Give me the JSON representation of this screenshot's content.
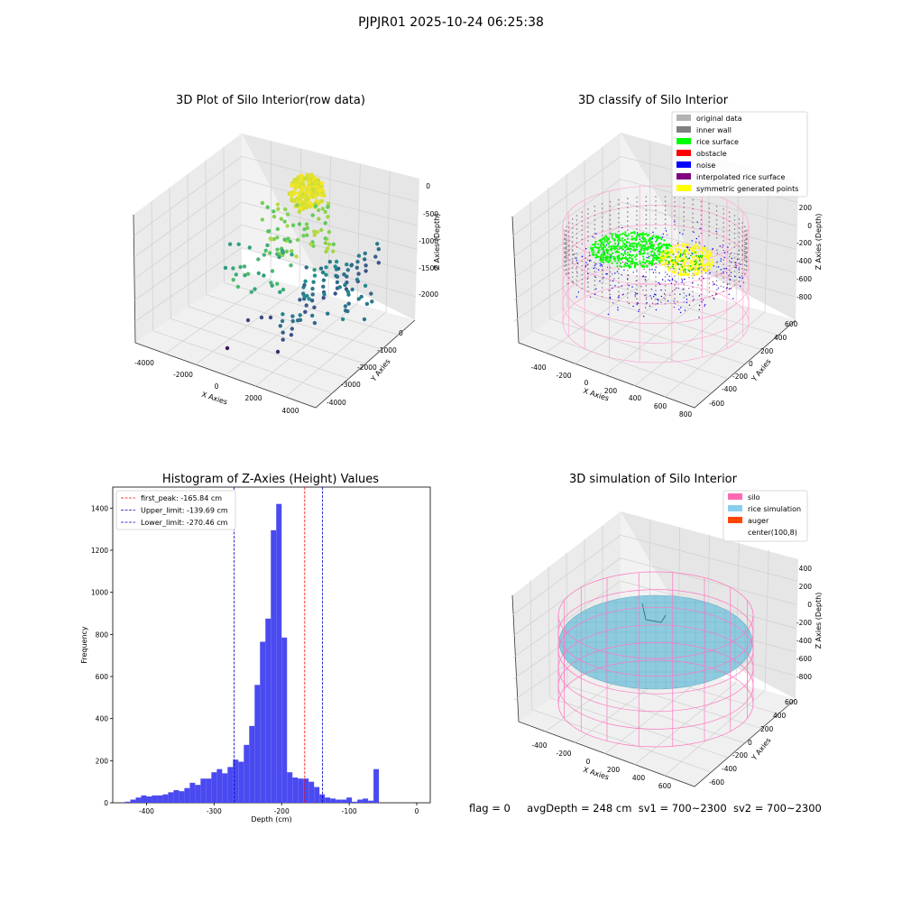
{
  "header": {
    "title": "PJPJR01 2025-10-24 06:25:38"
  },
  "footer": {
    "flag": "flag = 0",
    "avg": "avgDepth = 248 cm",
    "sv1": "sv1 = 700~2300",
    "sv2": "sv2 = 700~2300"
  },
  "chart_data": [
    {
      "type": "scatter",
      "title": "3D Plot of Silo Interior(row data)",
      "xlabel": "X Axies",
      "ylabel": "Y Axies",
      "zlabel": "Z Axies (Depth)",
      "x_ticks": [
        "-4000",
        "-2000",
        "0",
        "2000",
        "4000"
      ],
      "y_ticks": [
        "0",
        "-1000",
        "-2000",
        "-3000",
        "-4000"
      ],
      "z_ticks": [
        "0",
        "-500",
        "-1000",
        "-1500",
        "-2000"
      ],
      "colormap": "viridis",
      "grid": true
    },
    {
      "type": "scatter",
      "title": "3D classify of Silo Interior",
      "xlabel": "X Axies",
      "ylabel": "Y Axies",
      "zlabel": "Z Axies (Depth)",
      "x_ticks": [
        "-400",
        "-200",
        "0",
        "200",
        "400",
        "600",
        "800"
      ],
      "y_ticks": [
        "600",
        "400",
        "200",
        "0",
        "-200",
        "-400",
        "-600"
      ],
      "z_ticks": [
        "200",
        "0",
        "-200",
        "-400",
        "-600",
        "-800"
      ],
      "legend_position": "top-right",
      "legend": [
        {
          "label": "original data",
          "color": "#b3b3b3"
        },
        {
          "label": "inner wall",
          "color": "#808080"
        },
        {
          "label": "rice surface",
          "color": "#00ff00"
        },
        {
          "label": "obstacle",
          "color": "#ff0000"
        },
        {
          "label": "noise",
          "color": "#0000ff"
        },
        {
          "label": "interpolated rice surface",
          "color": "#800080"
        },
        {
          "label": "symmetric generated points",
          "color": "#ffff00"
        }
      ],
      "grid": true
    },
    {
      "type": "bar",
      "title": "Histogram of Z-Axies (Height) Values",
      "xlabel": "Depth (cm)",
      "ylabel": "Frequency",
      "xlim": [
        -450,
        20
      ],
      "ylim": [
        0,
        1500
      ],
      "x_ticks": [
        -400,
        -300,
        -200,
        -100,
        0
      ],
      "y_ticks": [
        0,
        200,
        400,
        600,
        800,
        1000,
        1200,
        1400
      ],
      "bin_width": 8,
      "bin_start": -432,
      "bar_color": "#4a4af0",
      "values": [
        5,
        15,
        25,
        35,
        30,
        35,
        35,
        40,
        50,
        60,
        55,
        70,
        95,
        85,
        115,
        115,
        145,
        160,
        140,
        170,
        205,
        195,
        275,
        365,
        560,
        765,
        875,
        1295,
        1420,
        785,
        145,
        120,
        115,
        115,
        100,
        75,
        40,
        25,
        20,
        15,
        15,
        25,
        5,
        15,
        20,
        10,
        160
      ],
      "reference_lines": [
        {
          "label": "first_peak: -165.84 cm",
          "value": -165.84,
          "color": "#ff0000"
        },
        {
          "label": "Upper_limit: -139.69 cm",
          "value": -139.69,
          "color": "#0000cc"
        },
        {
          "label": "Lower_limit: -270.46 cm",
          "value": -270.46,
          "color": "#0000cc"
        }
      ],
      "legend_position": "top-left",
      "grid": false
    },
    {
      "type": "scatter",
      "title": "3D simulation of Silo Interior",
      "xlabel": "X Axies",
      "ylabel": "Y Axies",
      "zlabel": "Z Axies (Depth)",
      "x_ticks": [
        "-400",
        "-200",
        "0",
        "200",
        "400",
        "600"
      ],
      "y_ticks": [
        "600",
        "400",
        "200",
        "0",
        "-200",
        "-400",
        "-600"
      ],
      "z_ticks": [
        "400",
        "200",
        "0",
        "-200",
        "-400",
        "-600",
        "-800"
      ],
      "legend_position": "top-right",
      "legend": [
        {
          "label": "silo",
          "color": "#ff69b4"
        },
        {
          "label": "rice simulation",
          "color": "#87ceeb"
        },
        {
          "label": "auger",
          "color": "#ff4500"
        },
        {
          "label": "center(100,8)",
          "color": "#ffffff"
        }
      ],
      "grid": true
    }
  ]
}
